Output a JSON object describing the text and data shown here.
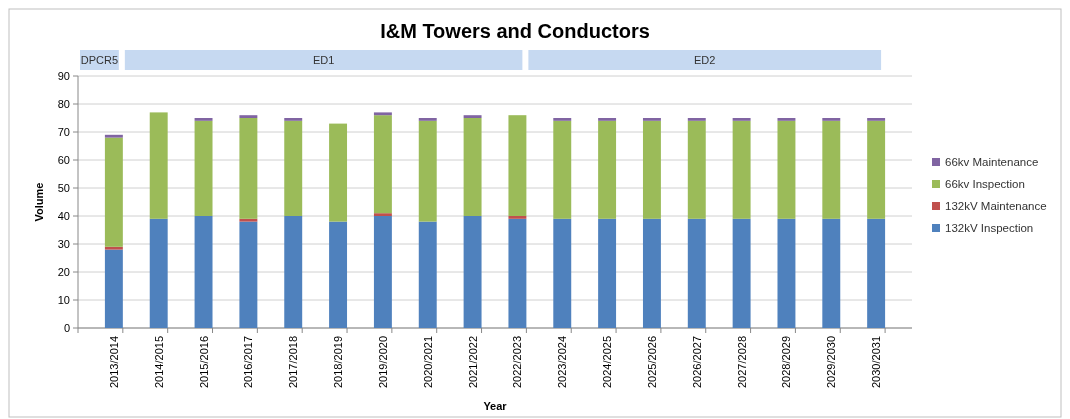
{
  "chart_data": {
    "type": "bar",
    "stacked": true,
    "title": "I&M Towers and Conductors",
    "xlabel": "Year",
    "ylabel": "Volume",
    "categories": [
      "2013/2014",
      "2014/2015",
      "2015/2016",
      "2016/2017",
      "2017/2018",
      "2018/2019",
      "2019/2020",
      "2020/2021",
      "2021/2022",
      "2022/2023",
      "2023/2024",
      "2024/2025",
      "2025/2026",
      "2026/2027",
      "2027/2028",
      "2028/2029",
      "2029/2030",
      "2030/2031"
    ],
    "series": [
      {
        "name": "132kV Inspection",
        "color": "#4f81bd",
        "values": [
          28,
          39,
          40,
          38,
          40,
          38,
          40,
          38,
          40,
          39,
          39,
          39,
          39,
          39,
          39,
          39,
          39,
          39
        ]
      },
      {
        "name": "132kV Maintenance",
        "color": "#c0504d",
        "values": [
          1,
          0,
          0,
          1,
          0,
          0,
          1,
          0,
          0,
          1,
          0,
          0,
          0,
          0,
          0,
          0,
          0,
          0
        ]
      },
      {
        "name": "66kv Inspection",
        "color": "#9bbb59",
        "values": [
          39,
          38,
          34,
          36,
          34,
          35,
          35,
          36,
          35,
          36,
          35,
          35,
          35,
          35,
          35,
          35,
          35,
          35
        ]
      },
      {
        "name": "66kv Maintenance",
        "color": "#8064a2",
        "values": [
          1,
          0,
          1,
          1,
          1,
          0,
          1,
          1,
          1,
          0,
          1,
          1,
          1,
          1,
          1,
          1,
          1,
          1
        ]
      }
    ],
    "ylim": [
      0,
      90
    ],
    "yticks": [
      0,
      10,
      20,
      30,
      40,
      50,
      60,
      70,
      80,
      90
    ],
    "grid": "y",
    "legend": "right",
    "annotations": [
      "DPCR5",
      "ED1",
      "ED2"
    ]
  }
}
